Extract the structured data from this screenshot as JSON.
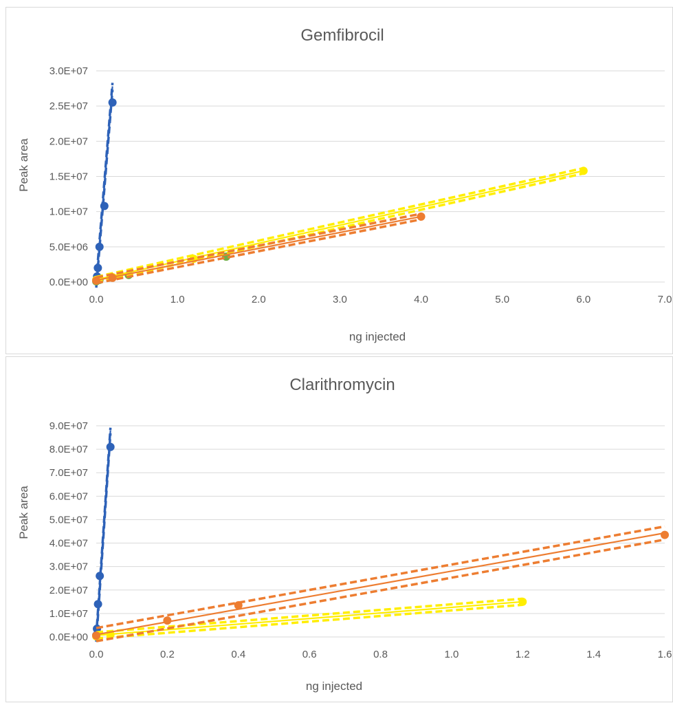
{
  "chart_data": [
    {
      "type": "scatter",
      "title": "Gemfibrocil",
      "xlabel": "ng injected",
      "ylabel": "Peak area",
      "xlim": [
        0,
        7
      ],
      "ylim": [
        0,
        30000000
      ],
      "x_tick_labels": [
        "0.0",
        "1.0",
        "2.0",
        "3.0",
        "4.0",
        "5.0",
        "6.0",
        "7.0"
      ],
      "y_tick_labels": [
        "0.0E+00",
        "5.0E+06",
        "1.0E+07",
        "1.5E+07",
        "2.0E+07",
        "2.5E+07",
        "3.0E+07"
      ],
      "grid": true,
      "series": [
        {
          "color": "#2e62b8",
          "points": [
            [
              0.0,
              200000
            ],
            [
              0.01,
              800000
            ],
            [
              0.02,
              2000000
            ],
            [
              0.04,
              5000000
            ],
            [
              0.1,
              10800000
            ],
            [
              0.2,
              25500000
            ]
          ],
          "fit": [
            [
              0.0,
              -300000
            ],
            [
              0.2,
              27800000
            ]
          ],
          "band_offset": 500000
        },
        {
          "color": "#70ad47",
          "points": [
            [
              0.0,
              100000
            ],
            [
              0.04,
              300000
            ],
            [
              0.4,
              1000000
            ],
            [
              1.6,
              3600000
            ]
          ],
          "fit": null,
          "band_offset": 0
        },
        {
          "color": "#ffee00",
          "points": [
            [
              0.0,
              300000
            ],
            [
              0.2,
              700000
            ],
            [
              1.2,
              3300000
            ],
            [
              6.0,
              15800000
            ]
          ],
          "fit": [
            [
              0.0,
              350000
            ],
            [
              6.0,
              15800000
            ]
          ],
          "band_offset": 380000
        },
        {
          "color": "#ed7d31",
          "points": [
            [
              0.0,
              200000
            ],
            [
              0.2,
              600000
            ],
            [
              4.0,
              9300000
            ]
          ],
          "fit": [
            [
              0.0,
              250000
            ],
            [
              4.0,
              9300000
            ]
          ],
          "band_offset": 400000
        }
      ]
    },
    {
      "type": "scatter",
      "title": "Clarithromycin",
      "xlabel": "ng injected",
      "ylabel": "Peak area",
      "xlim": [
        0,
        1.6
      ],
      "ylim": [
        0,
        90000000
      ],
      "x_tick_labels": [
        "0.0",
        "0.2",
        "0.4",
        "0.6",
        "0.8",
        "1.0",
        "1.2",
        "1.4",
        "1.6"
      ],
      "y_tick_labels": [
        "0.0E+00",
        "1.0E+07",
        "2.0E+07",
        "3.0E+07",
        "4.0E+07",
        "5.0E+07",
        "6.0E+07",
        "7.0E+07",
        "8.0E+07",
        "9.0E+07"
      ],
      "grid": true,
      "series": [
        {
          "color": "#2e62b8",
          "points": [
            [
              0.0,
              700000
            ],
            [
              0.002,
              3500000
            ],
            [
              0.005,
              14000000
            ],
            [
              0.01,
              26000000
            ],
            [
              0.04,
              81000000
            ]
          ],
          "fit": [
            [
              0.0,
              -800000
            ],
            [
              0.04,
              88000000
            ]
          ],
          "band_offset": 1200000
        },
        {
          "color": "#ffee00",
          "points": [
            [
              0.0,
              300000
            ],
            [
              0.04,
              1000000
            ],
            [
              1.2,
              15000000
            ]
          ],
          "fit": [
            [
              0.0,
              700000
            ],
            [
              1.2,
              15000000
            ]
          ],
          "band_offset": 1300000
        },
        {
          "color": "#ed7d31",
          "points": [
            [
              0.0,
              600000
            ],
            [
              0.2,
              7000000
            ],
            [
              0.4,
              13500000
            ],
            [
              1.6,
              43500000
            ]
          ],
          "fit": [
            [
              0.0,
              1000000
            ],
            [
              1.6,
              44300000
            ]
          ],
          "band_offset": 2800000
        }
      ]
    }
  ]
}
